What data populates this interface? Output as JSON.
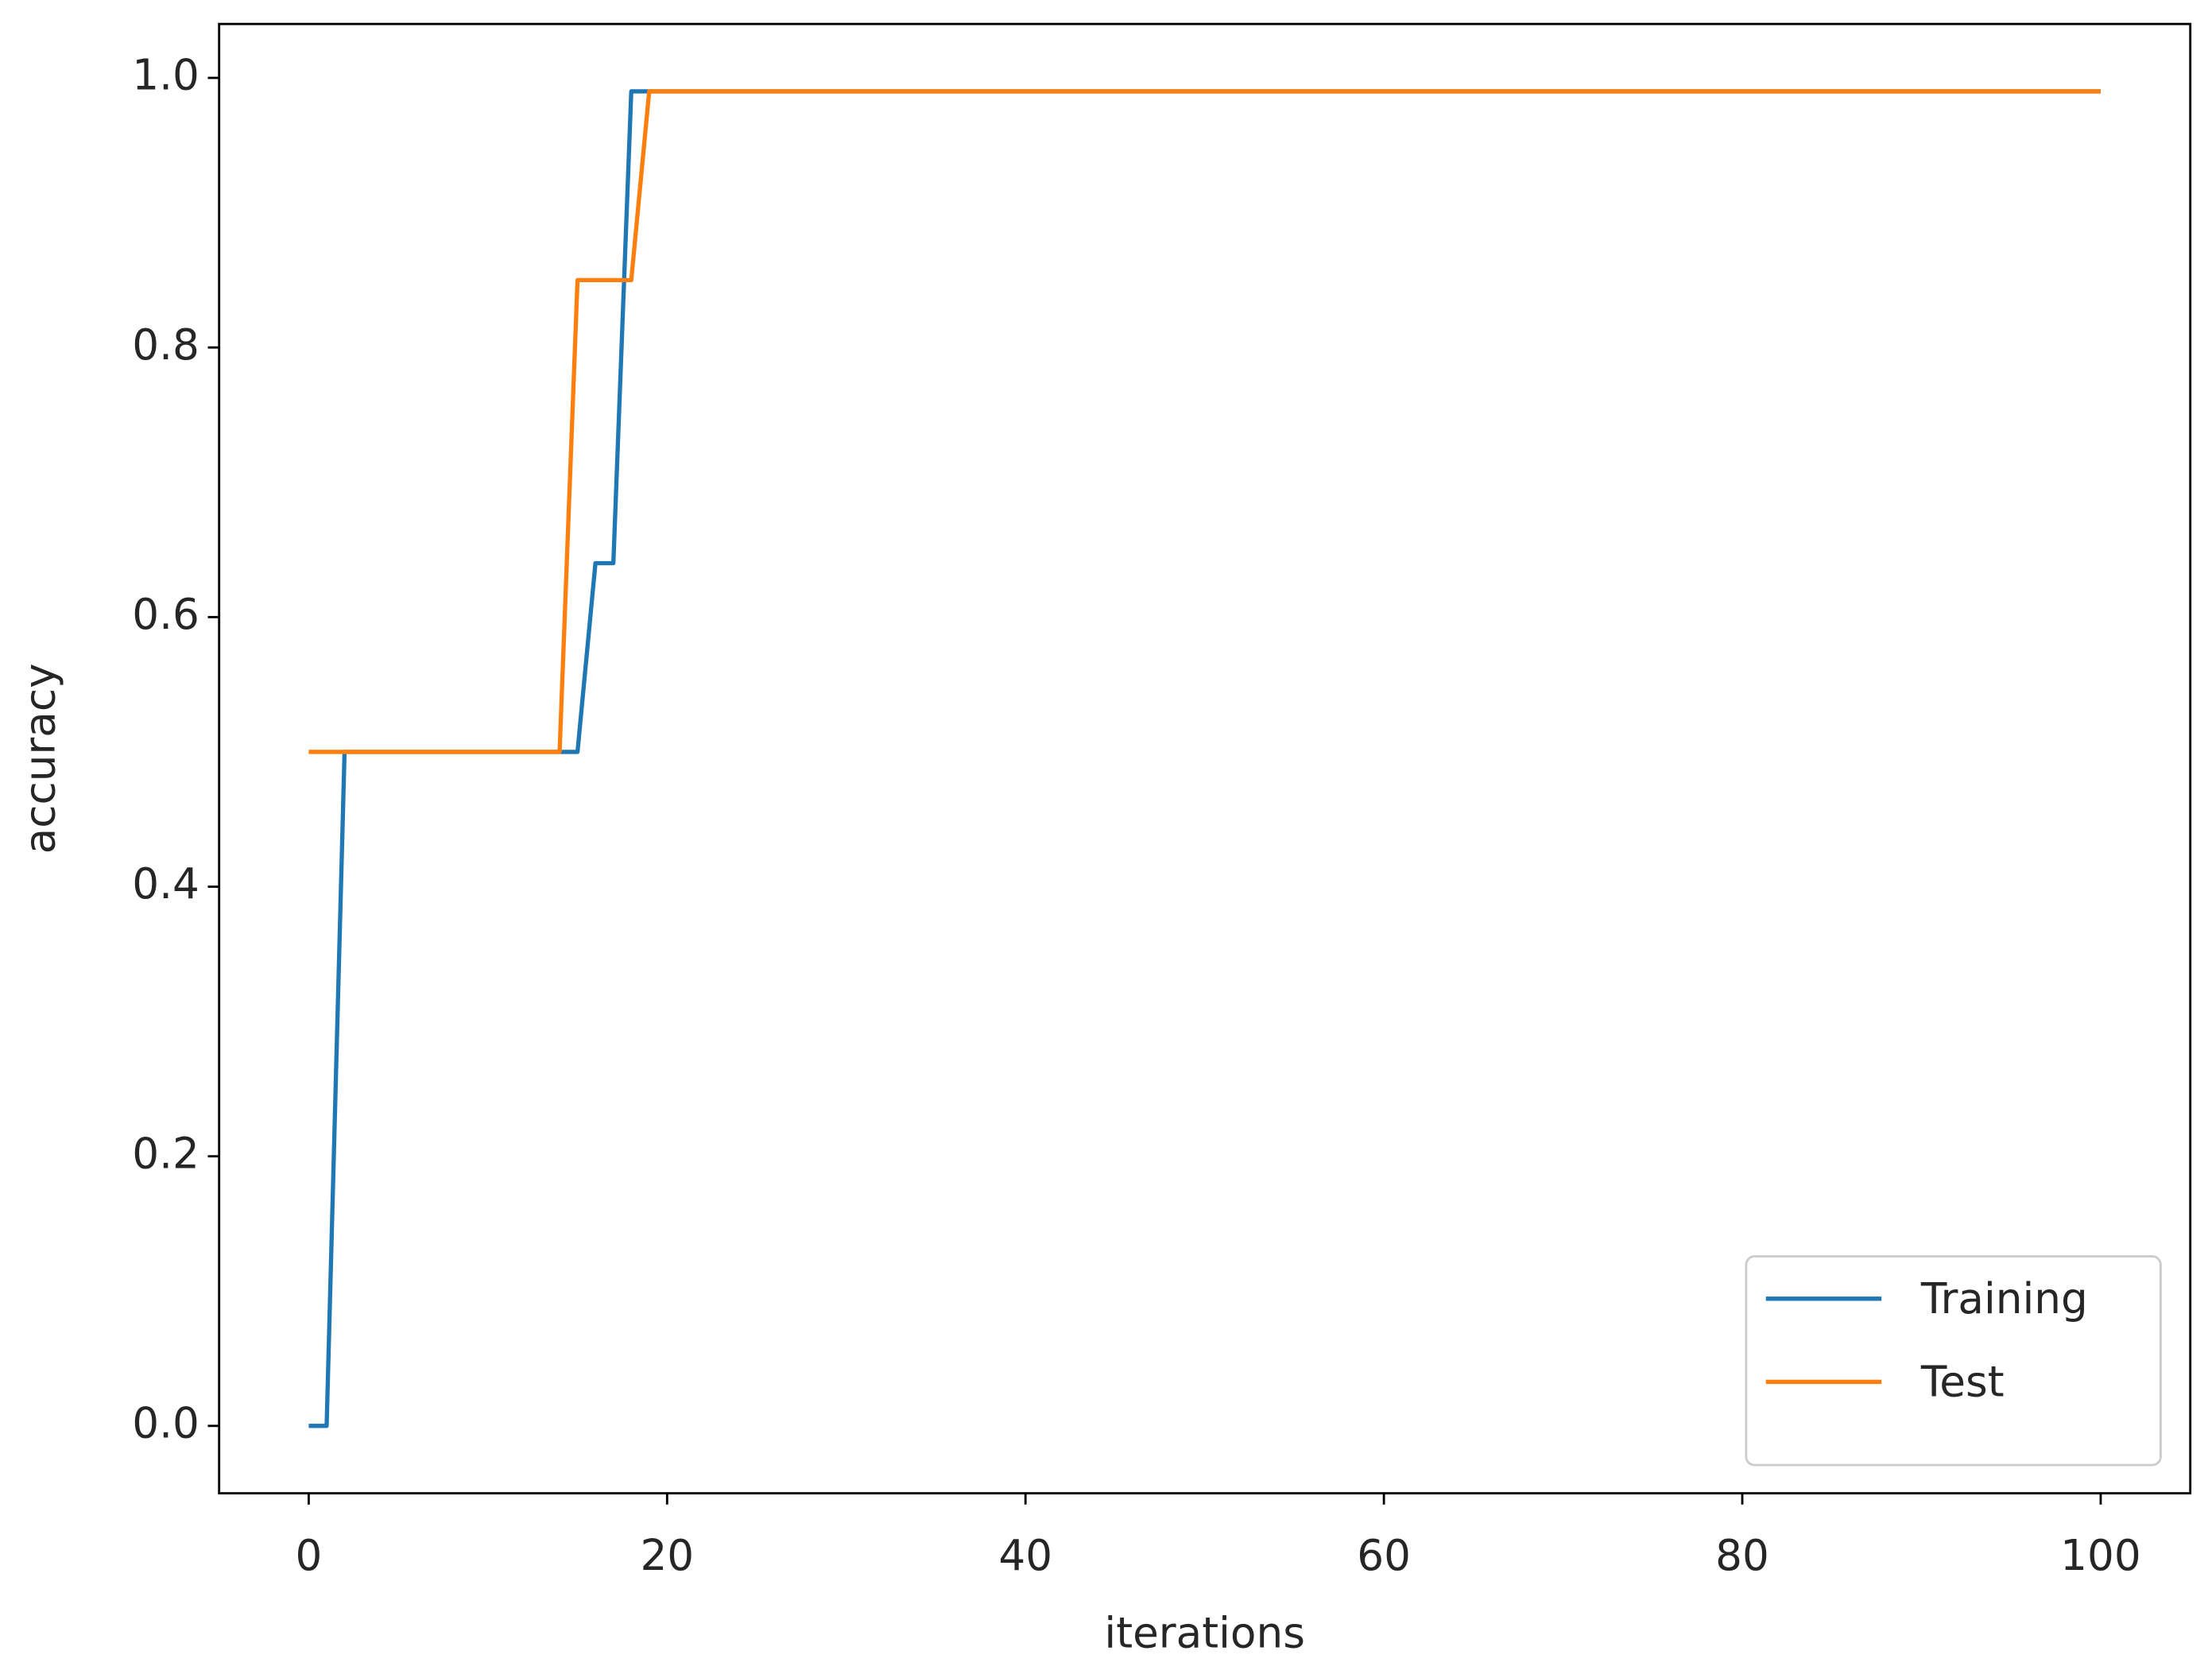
{
  "chart_data": {
    "type": "line",
    "xlabel": "iterations",
    "ylabel": "accuracy",
    "x": [
      0,
      1,
      2,
      3,
      4,
      5,
      6,
      7,
      8,
      9,
      10,
      11,
      12,
      13,
      14,
      15,
      16,
      17,
      18,
      19,
      20,
      21,
      22,
      23,
      24,
      25,
      26,
      27,
      28,
      29,
      30,
      31,
      32,
      33,
      34,
      35,
      36,
      37,
      38,
      39,
      40,
      41,
      42,
      43,
      44,
      45,
      46,
      47,
      48,
      49,
      50,
      51,
      52,
      53,
      54,
      55,
      56,
      57,
      58,
      59,
      60,
      61,
      62,
      63,
      64,
      65,
      66,
      67,
      68,
      69,
      70,
      71,
      72,
      73,
      74,
      75,
      76,
      77,
      78,
      79,
      80,
      81,
      82,
      83,
      84,
      85,
      86,
      87,
      88,
      89,
      90,
      91,
      92,
      93,
      94,
      95,
      96,
      97,
      98,
      99,
      100
    ],
    "series": [
      {
        "name": "Training",
        "color": "#1f77b4",
        "values": [
          0,
          0,
          0.5,
          0.5,
          0.5,
          0.5,
          0.5,
          0.5,
          0.5,
          0.5,
          0.5,
          0.5,
          0.5,
          0.5,
          0.5,
          0.5,
          0.64,
          0.64,
          0.99,
          0.99,
          0.99,
          0.99,
          0.99,
          0.99,
          0.99,
          0.99,
          0.99,
          0.99,
          0.99,
          0.99,
          0.99,
          0.99,
          0.99,
          0.99,
          0.99,
          0.99,
          0.99,
          0.99,
          0.99,
          0.99,
          0.99,
          0.99,
          0.99,
          0.99,
          0.99,
          0.99,
          0.99,
          0.99,
          0.99,
          0.99,
          0.99,
          0.99,
          0.99,
          0.99,
          0.99,
          0.99,
          0.99,
          0.99,
          0.99,
          0.99,
          0.99,
          0.99,
          0.99,
          0.99,
          0.99,
          0.99,
          0.99,
          0.99,
          0.99,
          0.99,
          0.99,
          0.99,
          0.99,
          0.99,
          0.99,
          0.99,
          0.99,
          0.99,
          0.99,
          0.99,
          0.99,
          0.99,
          0.99,
          0.99,
          0.99,
          0.99,
          0.99,
          0.99,
          0.99,
          0.99,
          0.99,
          0.99,
          0.99,
          0.99,
          0.99,
          0.99,
          0.99,
          0.99,
          0.99,
          0.99,
          0.99
        ]
      },
      {
        "name": "Test",
        "color": "#ff7f0e",
        "values": [
          0.5,
          0.5,
          0.5,
          0.5,
          0.5,
          0.5,
          0.5,
          0.5,
          0.5,
          0.5,
          0.5,
          0.5,
          0.5,
          0.5,
          0.5,
          0.85,
          0.85,
          0.85,
          0.85,
          0.99,
          0.99,
          0.99,
          0.99,
          0.99,
          0.99,
          0.99,
          0.99,
          0.99,
          0.99,
          0.99,
          0.99,
          0.99,
          0.99,
          0.99,
          0.99,
          0.99,
          0.99,
          0.99,
          0.99,
          0.99,
          0.99,
          0.99,
          0.99,
          0.99,
          0.99,
          0.99,
          0.99,
          0.99,
          0.99,
          0.99,
          0.99,
          0.99,
          0.99,
          0.99,
          0.99,
          0.99,
          0.99,
          0.99,
          0.99,
          0.99,
          0.99,
          0.99,
          0.99,
          0.99,
          0.99,
          0.99,
          0.99,
          0.99,
          0.99,
          0.99,
          0.99,
          0.99,
          0.99,
          0.99,
          0.99,
          0.99,
          0.99,
          0.99,
          0.99,
          0.99,
          0.99,
          0.99,
          0.99,
          0.99,
          0.99,
          0.99,
          0.99,
          0.99,
          0.99,
          0.99,
          0.99,
          0.99,
          0.99,
          0.99,
          0.99,
          0.99,
          0.99,
          0.99,
          0.99,
          0.99,
          0.99
        ]
      }
    ],
    "xlim": [
      -5,
      105
    ],
    "xticks": [
      0,
      20,
      40,
      60,
      80,
      100
    ],
    "ylim": [
      -0.05,
      1.04
    ],
    "yticks": [
      {
        "value": 0,
        "label": "0.0"
      },
      0.2,
      0.4,
      0.6,
      0.8,
      {
        "value": 1,
        "label": "1.0"
      }
    ],
    "grid": false,
    "legend": "lower right"
  }
}
